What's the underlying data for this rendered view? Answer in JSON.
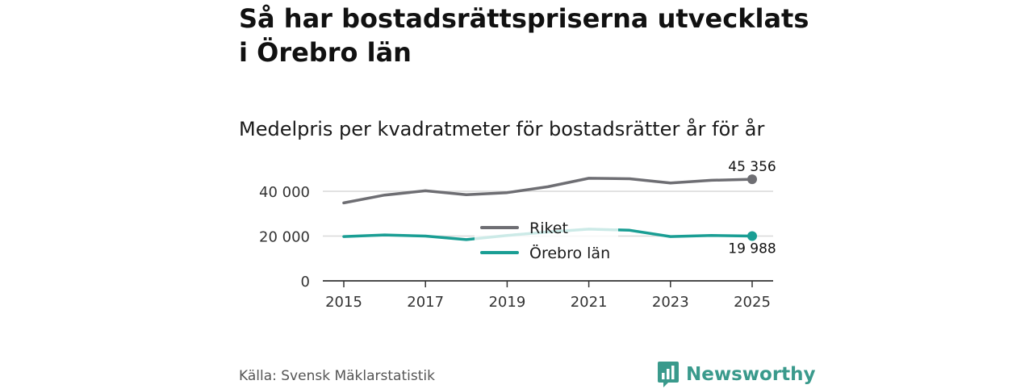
{
  "header": {
    "title": "Så har bostadsrättspriserna utvecklats i Örebro län",
    "subtitle": "Medelpris per kvadratmeter för bostadsrätter år för år"
  },
  "footer": {
    "source": "Källa: Svensk Mäklarstatistik",
    "brand": "Newsworthy",
    "brand_icon": "newsworthy-logo-icon",
    "brand_color": "#3a9a8c"
  },
  "chart_data": {
    "type": "line",
    "title": "Så har bostadsrättspriserna utvecklats i Örebro län",
    "subtitle": "Medelpris per kvadratmeter för bostadsrätter år för år",
    "xlabel": "",
    "ylabel": "",
    "x": [
      2015,
      2016,
      2017,
      2018,
      2019,
      2020,
      2021,
      2022,
      2023,
      2024,
      2025
    ],
    "xticks": [
      "2015",
      "2017",
      "2019",
      "2021",
      "2023",
      "2025"
    ],
    "yticks": [
      "0",
      "20 000",
      "40 000"
    ],
    "ylim": [
      0,
      50000
    ],
    "grid": true,
    "legend_position": "center",
    "series": [
      {
        "name": "Riket",
        "color": "#6e6e73",
        "values": [
          34800,
          38300,
          40200,
          38500,
          39400,
          42000,
          45800,
          45600,
          43700,
          44900,
          45356
        ],
        "end_label": "45 356"
      },
      {
        "name": "Örebro län",
        "color": "#1a9e94",
        "values": [
          19800,
          20500,
          20000,
          18400,
          20300,
          21800,
          23100,
          22600,
          19800,
          20300,
          19988
        ],
        "end_label": "19 988"
      }
    ]
  }
}
